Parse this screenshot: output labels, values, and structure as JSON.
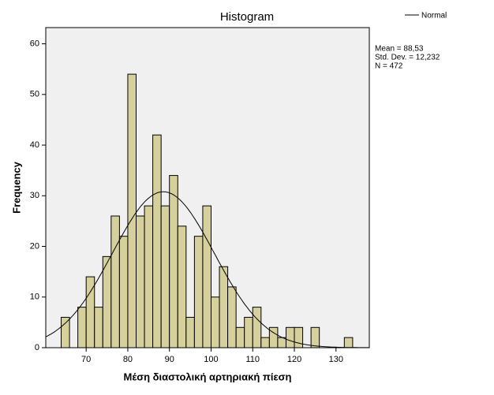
{
  "chart_data": {
    "type": "histogram",
    "title": "Histogram",
    "x_label": "Μέση διαστολική αρτηριακή πίεση",
    "y_label": "Frequency",
    "bins": [
      64,
      66,
      68,
      70,
      72,
      74,
      76,
      78,
      80,
      82,
      84,
      86,
      88,
      90,
      92,
      94,
      96,
      98,
      100,
      102,
      104,
      106,
      108,
      110,
      112,
      114,
      116,
      118,
      120,
      122,
      124,
      126,
      128,
      130,
      132,
      134
    ],
    "counts": [
      6,
      0,
      8,
      14,
      8,
      18,
      26,
      22,
      54,
      26,
      28,
      42,
      28,
      34,
      24,
      6,
      22,
      28,
      10,
      16,
      12,
      4,
      6,
      8,
      2,
      4,
      2,
      4,
      4,
      0,
      4,
      0,
      0,
      0,
      2
    ],
    "color": "#d6d19c",
    "xlim": [
      60.3,
      138
    ],
    "xticks": [
      70,
      80,
      90,
      100,
      110,
      120,
      130
    ],
    "ylim": [
      0,
      63.2
    ],
    "yticks": [
      0,
      10,
      20,
      30,
      40,
      50,
      60
    ],
    "normal": {
      "name": "Normal",
      "mean": 88.53,
      "sd": 12.232,
      "n": 472
    },
    "stats_labels": [
      "Mean = 88,53",
      "Std. Dev. = 12,232",
      "N = 472"
    ]
  }
}
